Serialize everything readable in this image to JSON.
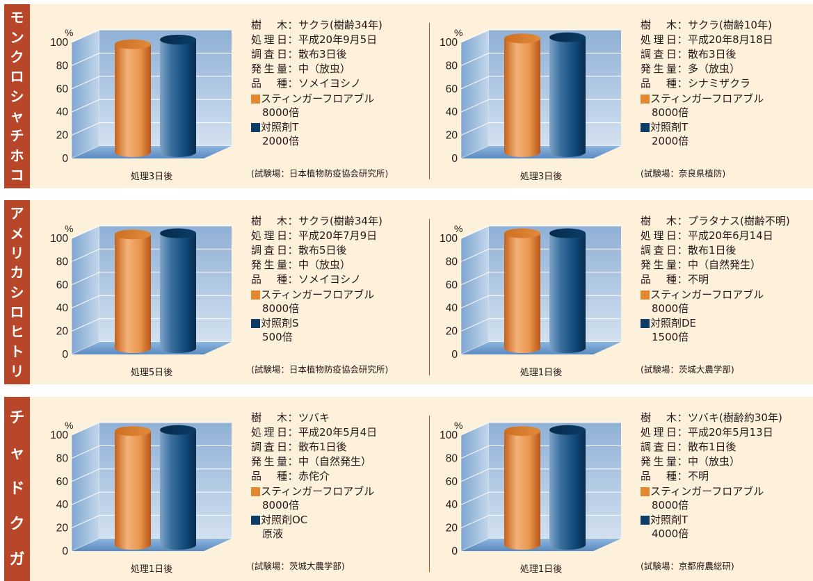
{
  "colors": {
    "tab": "#b8472a",
    "band": "#fdf1dc",
    "divider": "#c8442a",
    "wall": "#b3c9e2",
    "floor": "#6e9ccd",
    "sting": "#e3882f",
    "control": "#0b3d66"
  },
  "common": {
    "unit": "%",
    "label_tree": "樹 木",
    "label_date": "処理日",
    "label_survey": "調査日",
    "label_occurrence": "発生量",
    "label_variety": "品 種",
    "separator": "：",
    "product_name": "スティンガーフロアブル",
    "product_conc": "8000倍",
    "y_ticks": [
      "100",
      "80",
      "60",
      "40",
      "20",
      "0"
    ]
  },
  "rows": [
    {
      "pest": "モンクロシャチホコ",
      "panels": [
        {
          "tree": "サクラ(樹齢34年)",
          "date": "平成20年9月5日",
          "survey": "散布3日後",
          "occurrence": "中（放虫）",
          "variety": "ソメイヨシノ",
          "control_name": "対照剤T",
          "control_conc": "2000倍",
          "site": "(試験場：日本植物防疫協会研究所)",
          "category": "処理3日後"
        },
        {
          "tree": "サクラ(樹齢10年)",
          "date": "平成20年8月18日",
          "survey": "散布3日後",
          "occurrence": "多（放虫）",
          "variety": "シナミザクラ",
          "control_name": "対照剤T",
          "control_conc": "2000倍",
          "site": "(試験場：奈良県植防)",
          "category": "処理3日後"
        }
      ]
    },
    {
      "pest": "アメリカシロヒトリ",
      "panels": [
        {
          "tree": "サクラ(樹齢34年)",
          "date": "平成20年7月9日",
          "survey": "散布5日後",
          "occurrence": "中（放虫）",
          "variety": "ソメイヨシノ",
          "control_name": "対照剤S",
          "control_conc": "500倍",
          "site": "(試験場：日本植物防疫協会研究所)",
          "category": "処理5日後"
        },
        {
          "tree": "プラタナス(樹齢不明)",
          "date": "平成20年6月14日",
          "survey": "散布1日後",
          "occurrence": "中（自然発生）",
          "variety": "不明",
          "control_name": "対照剤DE",
          "control_conc": "1500倍",
          "site": "(試験場：茨城大農学部)",
          "category": "処理1日後"
        }
      ]
    },
    {
      "pest": "チャドクガ",
      "panels": [
        {
          "tree": "ツバキ",
          "date": "平成20年5月4日",
          "survey": "散布1日後",
          "occurrence": "中（自然発生）",
          "variety": "赤侘介",
          "control_name": "対照剤OC",
          "control_conc": "原液",
          "site": "(試験場：茨城大農学部)",
          "category": "処理1日後"
        },
        {
          "tree": "ツバキ(樹齢約30年)",
          "date": "平成20年5月13日",
          "survey": "散布1日後",
          "occurrence": "中（放虫）",
          "variety": "不明",
          "control_name": "対照剤T",
          "control_conc": "4000倍",
          "site": "(試験場：京都府農総研)",
          "category": "処理1日後"
        }
      ]
    }
  ],
  "chart_data": [
    {
      "type": "bar",
      "unit": "%",
      "ylim": [
        0,
        100
      ],
      "categories": [
        "処理3日後"
      ],
      "series": [
        {
          "name": "スティンガーフロアブル 8000倍",
          "values": [
            93
          ]
        },
        {
          "name": "対照剤T 2000倍",
          "values": [
            97
          ]
        }
      ]
    },
    {
      "type": "bar",
      "unit": "%",
      "ylim": [
        0,
        100
      ],
      "categories": [
        "処理3日後"
      ],
      "series": [
        {
          "name": "スティンガーフロアブル 8000倍",
          "values": [
            98
          ]
        },
        {
          "name": "対照剤T 2000倍",
          "values": [
            99
          ]
        }
      ]
    },
    {
      "type": "bar",
      "unit": "%",
      "ylim": [
        0,
        100
      ],
      "categories": [
        "処理5日後"
      ],
      "series": [
        {
          "name": "スティンガーフロアブル 8000倍",
          "values": [
            98
          ]
        },
        {
          "name": "対照剤S 500倍",
          "values": [
            99
          ]
        }
      ]
    },
    {
      "type": "bar",
      "unit": "%",
      "ylim": [
        0,
        100
      ],
      "categories": [
        "処理1日後"
      ],
      "series": [
        {
          "name": "スティンガーフロアブル 8000倍",
          "values": [
            99
          ]
        },
        {
          "name": "対照剤DE 1500倍",
          "values": [
            99
          ]
        }
      ]
    },
    {
      "type": "bar",
      "unit": "%",
      "ylim": [
        0,
        100
      ],
      "categories": [
        "処理1日後"
      ],
      "series": [
        {
          "name": "スティンガーフロアブル 8000倍",
          "values": [
            98
          ]
        },
        {
          "name": "対照剤OC 原液",
          "values": [
            99
          ]
        }
      ]
    },
    {
      "type": "bar",
      "unit": "%",
      "ylim": [
        0,
        100
      ],
      "categories": [
        "処理1日後"
      ],
      "series": [
        {
          "name": "スティンガーフロアブル 8000倍",
          "values": [
            98
          ]
        },
        {
          "name": "対照剤T 4000倍",
          "values": [
            99
          ]
        }
      ]
    }
  ]
}
